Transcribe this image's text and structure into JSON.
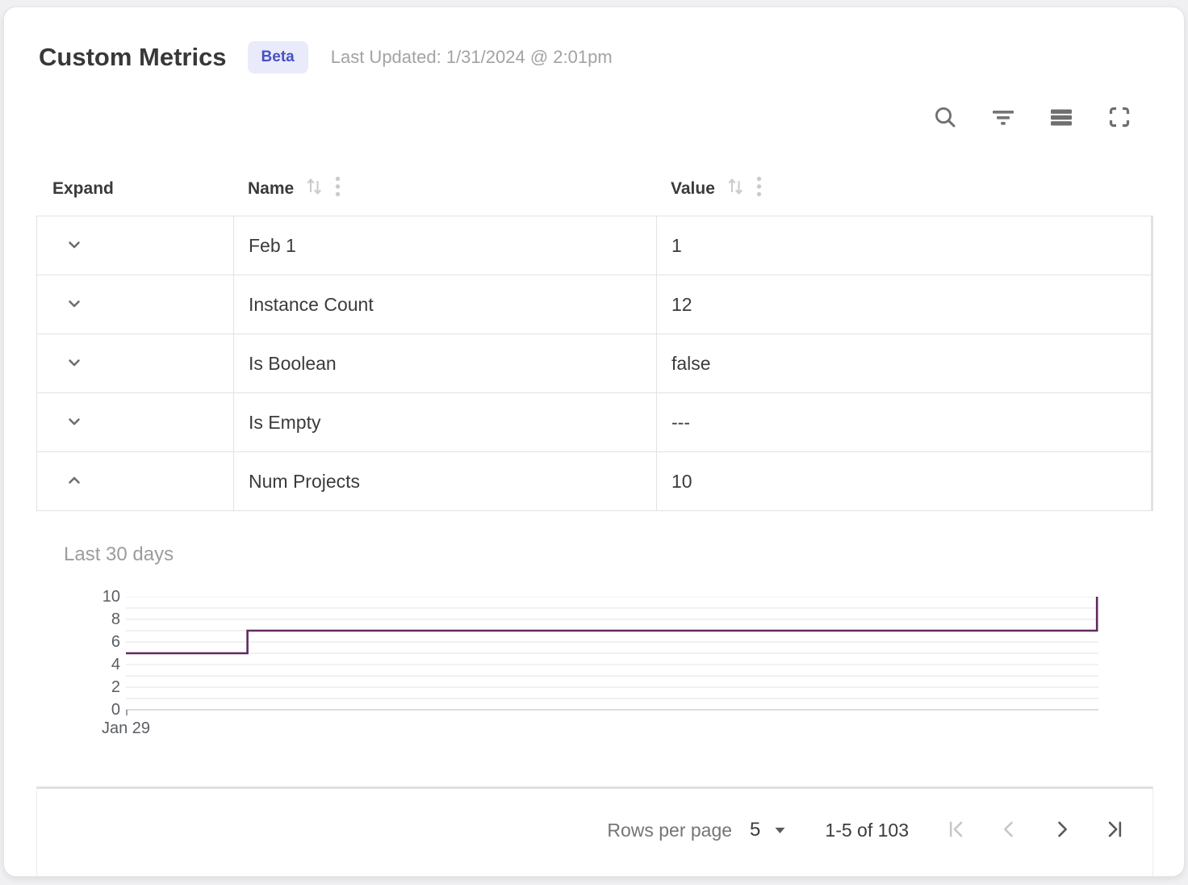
{
  "header": {
    "title": "Custom Metrics",
    "badge": "Beta",
    "last_updated": "Last Updated: 1/31/2024 @ 2:01pm"
  },
  "toolbar": {
    "icons": [
      "search",
      "filter",
      "density",
      "fullscreen"
    ]
  },
  "table": {
    "columns": [
      {
        "label": "Expand",
        "sortable": false
      },
      {
        "label": "Name",
        "sortable": true
      },
      {
        "label": "Value",
        "sortable": true
      }
    ],
    "rows": [
      {
        "name": "Feb 1",
        "value": "1",
        "state": "collapsed"
      },
      {
        "name": "Instance Count",
        "value": "12",
        "state": "collapsed"
      },
      {
        "name": "Is Boolean",
        "value": "false",
        "state": "collapsed"
      },
      {
        "name": "Is Empty",
        "value": "---",
        "state": "collapsed"
      },
      {
        "name": "Num Projects",
        "value": "10",
        "state": "expanded"
      }
    ]
  },
  "chart_data": {
    "type": "line",
    "subtype": "step",
    "title": "Last 30 days",
    "series": [
      {
        "name": "Num Projects",
        "points": [
          {
            "x": 0,
            "y": 5
          },
          {
            "x": 0.125,
            "y": 5
          },
          {
            "x": 0.125,
            "y": 7
          },
          {
            "x": 0.9985,
            "y": 7
          },
          {
            "x": 0.9985,
            "y": 10
          }
        ]
      }
    ],
    "x_ticks": [
      {
        "pos": 0,
        "label": "Jan 29"
      }
    ],
    "ylim": [
      0,
      10
    ],
    "y_ticks": [
      10,
      8,
      6,
      4,
      2,
      0
    ],
    "grid_interval": 1,
    "grid": true,
    "legend": false,
    "line_color": "#622a5e"
  },
  "pagination": {
    "rows_per_page_label": "Rows per page",
    "page_size": "5",
    "range_label": "1-5 of 103",
    "controls": [
      {
        "name": "first-page",
        "enabled": false
      },
      {
        "name": "previous-page",
        "enabled": false
      },
      {
        "name": "next-page",
        "enabled": true
      },
      {
        "name": "last-page",
        "enabled": true
      }
    ]
  },
  "colors": {
    "badge_bg": "#e9ebfb",
    "badge_text": "#4850c2",
    "line": "#622a5e",
    "border": "#e2e2e2",
    "text_primary": "#3b3b3b",
    "text_muted": "#a3a3a3",
    "icon": "#6f6f6f",
    "icon_muted": "#cbcbcb"
  }
}
